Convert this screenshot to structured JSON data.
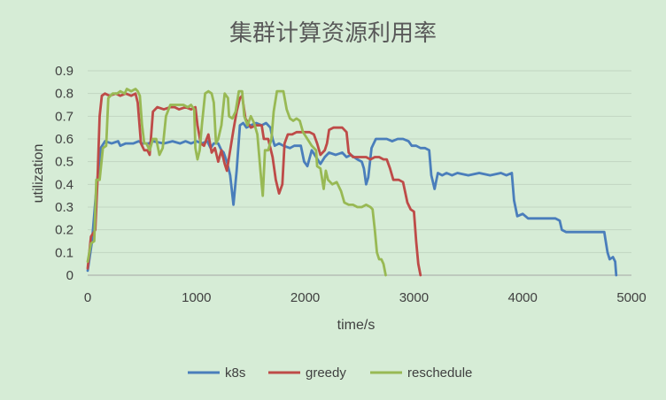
{
  "chart_data": {
    "type": "line",
    "title": "集群计算资源利用率",
    "xlabel": "time/s",
    "ylabel": "utilization",
    "xlim": [
      0,
      5000
    ],
    "ylim": [
      0,
      0.9
    ],
    "xticks": [
      0,
      1000,
      2000,
      3000,
      4000,
      5000
    ],
    "yticks": [
      0,
      0.1,
      0.2,
      0.3,
      0.4,
      0.5,
      0.6,
      0.7,
      0.8,
      0.9
    ],
    "grid": "horizontal",
    "legend": "bottom",
    "series": [
      {
        "name": "k8s",
        "color": "#4a7ebb",
        "points": [
          [
            0,
            0.02
          ],
          [
            40,
            0.15
          ],
          [
            80,
            0.38
          ],
          [
            120,
            0.56
          ],
          [
            160,
            0.59
          ],
          [
            220,
            0.58
          ],
          [
            280,
            0.59
          ],
          [
            300,
            0.57
          ],
          [
            350,
            0.58
          ],
          [
            420,
            0.58
          ],
          [
            470,
            0.59
          ],
          [
            500,
            0.58
          ],
          [
            560,
            0.58
          ],
          [
            600,
            0.59
          ],
          [
            700,
            0.58
          ],
          [
            780,
            0.59
          ],
          [
            850,
            0.58
          ],
          [
            900,
            0.59
          ],
          [
            950,
            0.58
          ],
          [
            1000,
            0.59
          ],
          [
            1050,
            0.58
          ],
          [
            1100,
            0.59
          ],
          [
            1130,
            0.56
          ],
          [
            1160,
            0.58
          ],
          [
            1200,
            0.58
          ],
          [
            1230,
            0.55
          ],
          [
            1250,
            0.54
          ],
          [
            1280,
            0.5
          ],
          [
            1310,
            0.44
          ],
          [
            1340,
            0.31
          ],
          [
            1370,
            0.46
          ],
          [
            1400,
            0.66
          ],
          [
            1430,
            0.67
          ],
          [
            1460,
            0.65
          ],
          [
            1500,
            0.66
          ],
          [
            1550,
            0.67
          ],
          [
            1600,
            0.66
          ],
          [
            1640,
            0.67
          ],
          [
            1680,
            0.65
          ],
          [
            1700,
            0.6
          ],
          [
            1720,
            0.57
          ],
          [
            1760,
            0.58
          ],
          [
            1800,
            0.57
          ],
          [
            1860,
            0.56
          ],
          [
            1900,
            0.57
          ],
          [
            1960,
            0.57
          ],
          [
            1990,
            0.5
          ],
          [
            2020,
            0.48
          ],
          [
            2060,
            0.55
          ],
          [
            2100,
            0.52
          ],
          [
            2140,
            0.49
          ],
          [
            2180,
            0.52
          ],
          [
            2220,
            0.54
          ],
          [
            2280,
            0.53
          ],
          [
            2340,
            0.54
          ],
          [
            2380,
            0.52
          ],
          [
            2420,
            0.53
          ],
          [
            2480,
            0.51
          ],
          [
            2520,
            0.5
          ],
          [
            2540,
            0.47
          ],
          [
            2560,
            0.4
          ],
          [
            2580,
            0.43
          ],
          [
            2610,
            0.56
          ],
          [
            2650,
            0.6
          ],
          [
            2700,
            0.6
          ],
          [
            2750,
            0.6
          ],
          [
            2800,
            0.59
          ],
          [
            2850,
            0.6
          ],
          [
            2900,
            0.6
          ],
          [
            2950,
            0.59
          ],
          [
            2980,
            0.57
          ],
          [
            3020,
            0.57
          ],
          [
            3060,
            0.56
          ],
          [
            3100,
            0.56
          ],
          [
            3140,
            0.55
          ],
          [
            3160,
            0.44
          ],
          [
            3190,
            0.38
          ],
          [
            3220,
            0.45
          ],
          [
            3260,
            0.44
          ],
          [
            3300,
            0.45
          ],
          [
            3350,
            0.44
          ],
          [
            3400,
            0.45
          ],
          [
            3500,
            0.44
          ],
          [
            3600,
            0.45
          ],
          [
            3700,
            0.44
          ],
          [
            3800,
            0.45
          ],
          [
            3850,
            0.44
          ],
          [
            3900,
            0.45
          ],
          [
            3920,
            0.33
          ],
          [
            3950,
            0.26
          ],
          [
            4000,
            0.27
          ],
          [
            4050,
            0.25
          ],
          [
            4100,
            0.25
          ],
          [
            4200,
            0.25
          ],
          [
            4300,
            0.25
          ],
          [
            4340,
            0.24
          ],
          [
            4360,
            0.2
          ],
          [
            4400,
            0.19
          ],
          [
            4500,
            0.19
          ],
          [
            4600,
            0.19
          ],
          [
            4700,
            0.19
          ],
          [
            4750,
            0.19
          ],
          [
            4760,
            0.16
          ],
          [
            4780,
            0.1
          ],
          [
            4800,
            0.07
          ],
          [
            4830,
            0.08
          ],
          [
            4850,
            0.06
          ],
          [
            4860,
            0.0
          ]
        ]
      },
      {
        "name": "greedy",
        "color": "#be4b48",
        "points": [
          [
            0,
            0.03
          ],
          [
            30,
            0.17
          ],
          [
            70,
            0.2
          ],
          [
            90,
            0.42
          ],
          [
            110,
            0.7
          ],
          [
            130,
            0.79
          ],
          [
            160,
            0.8
          ],
          [
            200,
            0.79
          ],
          [
            260,
            0.8
          ],
          [
            300,
            0.79
          ],
          [
            350,
            0.8
          ],
          [
            400,
            0.79
          ],
          [
            440,
            0.8
          ],
          [
            460,
            0.76
          ],
          [
            490,
            0.58
          ],
          [
            520,
            0.55
          ],
          [
            550,
            0.55
          ],
          [
            570,
            0.53
          ],
          [
            600,
            0.72
          ],
          [
            640,
            0.74
          ],
          [
            700,
            0.73
          ],
          [
            760,
            0.74
          ],
          [
            800,
            0.74
          ],
          [
            840,
            0.73
          ],
          [
            900,
            0.74
          ],
          [
            950,
            0.73
          ],
          [
            990,
            0.74
          ],
          [
            1010,
            0.66
          ],
          [
            1040,
            0.58
          ],
          [
            1070,
            0.57
          ],
          [
            1110,
            0.62
          ],
          [
            1140,
            0.54
          ],
          [
            1170,
            0.56
          ],
          [
            1200,
            0.5
          ],
          [
            1230,
            0.55
          ],
          [
            1260,
            0.49
          ],
          [
            1280,
            0.46
          ],
          [
            1310,
            0.55
          ],
          [
            1340,
            0.64
          ],
          [
            1370,
            0.72
          ],
          [
            1400,
            0.78
          ],
          [
            1420,
            0.79
          ],
          [
            1450,
            0.69
          ],
          [
            1500,
            0.65
          ],
          [
            1550,
            0.66
          ],
          [
            1600,
            0.66
          ],
          [
            1620,
            0.6
          ],
          [
            1660,
            0.6
          ],
          [
            1700,
            0.52
          ],
          [
            1730,
            0.42
          ],
          [
            1760,
            0.36
          ],
          [
            1790,
            0.4
          ],
          [
            1810,
            0.58
          ],
          [
            1840,
            0.62
          ],
          [
            1880,
            0.62
          ],
          [
            1920,
            0.63
          ],
          [
            1960,
            0.63
          ],
          [
            2000,
            0.63
          ],
          [
            2040,
            0.63
          ],
          [
            2080,
            0.62
          ],
          [
            2110,
            0.58
          ],
          [
            2140,
            0.53
          ],
          [
            2180,
            0.55
          ],
          [
            2200,
            0.58
          ],
          [
            2220,
            0.64
          ],
          [
            2260,
            0.65
          ],
          [
            2300,
            0.65
          ],
          [
            2340,
            0.65
          ],
          [
            2380,
            0.63
          ],
          [
            2400,
            0.54
          ],
          [
            2440,
            0.52
          ],
          [
            2480,
            0.52
          ],
          [
            2520,
            0.52
          ],
          [
            2560,
            0.52
          ],
          [
            2600,
            0.51
          ],
          [
            2640,
            0.52
          ],
          [
            2680,
            0.52
          ],
          [
            2720,
            0.51
          ],
          [
            2750,
            0.51
          ],
          [
            2780,
            0.47
          ],
          [
            2810,
            0.42
          ],
          [
            2860,
            0.42
          ],
          [
            2900,
            0.41
          ],
          [
            2940,
            0.32
          ],
          [
            2970,
            0.29
          ],
          [
            3000,
            0.28
          ],
          [
            3020,
            0.15
          ],
          [
            3040,
            0.05
          ],
          [
            3060,
            0.0
          ]
        ]
      },
      {
        "name": "reschedule",
        "color": "#98b954",
        "points": [
          [
            0,
            0.06
          ],
          [
            30,
            0.14
          ],
          [
            60,
            0.15
          ],
          [
            80,
            0.42
          ],
          [
            110,
            0.42
          ],
          [
            140,
            0.56
          ],
          [
            170,
            0.57
          ],
          [
            190,
            0.78
          ],
          [
            230,
            0.8
          ],
          [
            270,
            0.8
          ],
          [
            300,
            0.81
          ],
          [
            340,
            0.8
          ],
          [
            360,
            0.82
          ],
          [
            400,
            0.81
          ],
          [
            440,
            0.82
          ],
          [
            460,
            0.81
          ],
          [
            480,
            0.79
          ],
          [
            500,
            0.66
          ],
          [
            520,
            0.58
          ],
          [
            540,
            0.58
          ],
          [
            570,
            0.55
          ],
          [
            600,
            0.6
          ],
          [
            630,
            0.6
          ],
          [
            660,
            0.53
          ],
          [
            690,
            0.56
          ],
          [
            720,
            0.7
          ],
          [
            760,
            0.75
          ],
          [
            800,
            0.75
          ],
          [
            840,
            0.75
          ],
          [
            880,
            0.75
          ],
          [
            920,
            0.74
          ],
          [
            950,
            0.75
          ],
          [
            980,
            0.73
          ],
          [
            990,
            0.56
          ],
          [
            1010,
            0.51
          ],
          [
            1030,
            0.55
          ],
          [
            1050,
            0.66
          ],
          [
            1080,
            0.8
          ],
          [
            1110,
            0.81
          ],
          [
            1140,
            0.8
          ],
          [
            1160,
            0.76
          ],
          [
            1180,
            0.58
          ],
          [
            1200,
            0.6
          ],
          [
            1230,
            0.66
          ],
          [
            1260,
            0.8
          ],
          [
            1290,
            0.78
          ],
          [
            1300,
            0.7
          ],
          [
            1330,
            0.69
          ],
          [
            1360,
            0.72
          ],
          [
            1390,
            0.81
          ],
          [
            1420,
            0.81
          ],
          [
            1440,
            0.7
          ],
          [
            1470,
            0.66
          ],
          [
            1500,
            0.7
          ],
          [
            1530,
            0.67
          ],
          [
            1560,
            0.62
          ],
          [
            1590,
            0.45
          ],
          [
            1610,
            0.35
          ],
          [
            1630,
            0.55
          ],
          [
            1660,
            0.55
          ],
          [
            1690,
            0.6
          ],
          [
            1710,
            0.72
          ],
          [
            1740,
            0.81
          ],
          [
            1770,
            0.81
          ],
          [
            1800,
            0.81
          ],
          [
            1830,
            0.73
          ],
          [
            1860,
            0.69
          ],
          [
            1890,
            0.68
          ],
          [
            1920,
            0.69
          ],
          [
            1950,
            0.68
          ],
          [
            1980,
            0.63
          ],
          [
            2020,
            0.6
          ],
          [
            2060,
            0.57
          ],
          [
            2100,
            0.55
          ],
          [
            2110,
            0.48
          ],
          [
            2140,
            0.47
          ],
          [
            2170,
            0.38
          ],
          [
            2190,
            0.46
          ],
          [
            2210,
            0.42
          ],
          [
            2250,
            0.4
          ],
          [
            2290,
            0.41
          ],
          [
            2330,
            0.37
          ],
          [
            2360,
            0.32
          ],
          [
            2400,
            0.31
          ],
          [
            2440,
            0.31
          ],
          [
            2480,
            0.3
          ],
          [
            2520,
            0.3
          ],
          [
            2560,
            0.31
          ],
          [
            2600,
            0.3
          ],
          [
            2620,
            0.29
          ],
          [
            2640,
            0.2
          ],
          [
            2660,
            0.1
          ],
          [
            2680,
            0.07
          ],
          [
            2700,
            0.07
          ],
          [
            2720,
            0.05
          ],
          [
            2740,
            0.0
          ]
        ]
      }
    ]
  }
}
